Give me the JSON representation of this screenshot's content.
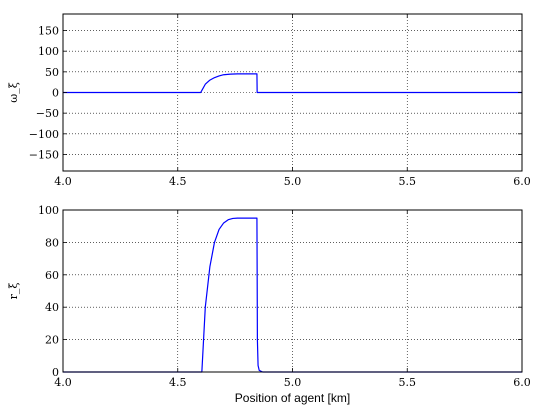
{
  "chart_data": [
    {
      "type": "line",
      "ylabel": "ω_ξ",
      "xlim": [
        4.0,
        6.0
      ],
      "ylim": [
        -190,
        190
      ],
      "x_ticks": [
        "4.0",
        "4.5",
        "5.0",
        "5.5",
        "6.0"
      ],
      "y_ticks": [
        "−150",
        "−100",
        "−50",
        "0",
        "50",
        "100",
        "150"
      ],
      "x_tick_values": [
        4.0,
        4.5,
        5.0,
        5.5,
        6.0
      ],
      "y_tick_values": [
        -150,
        -100,
        -50,
        0,
        50,
        100,
        150
      ],
      "grid": true,
      "series": [
        {
          "color": "#0000ff",
          "x": [
            4.0,
            4.6,
            4.605,
            4.62,
            4.64,
            4.66,
            4.68,
            4.7,
            4.73,
            4.76,
            4.8,
            4.845,
            4.846,
            4.86,
            6.0
          ],
          "y": [
            0,
            0,
            5,
            20,
            30,
            36,
            40,
            43,
            44.5,
            45,
            45,
            45,
            0,
            0,
            0
          ]
        }
      ]
    },
    {
      "type": "line",
      "ylabel": "r_ξ",
      "xlabel": "Position of agent [km]",
      "xlim": [
        4.0,
        6.0
      ],
      "ylim": [
        0,
        100
      ],
      "x_ticks": [
        "4.0",
        "4.5",
        "5.0",
        "5.5",
        "6.0"
      ],
      "y_ticks": [
        "0",
        "20",
        "40",
        "60",
        "80",
        "100"
      ],
      "x_tick_values": [
        4.0,
        4.5,
        5.0,
        5.5,
        6.0
      ],
      "y_tick_values": [
        0,
        20,
        40,
        60,
        80,
        100
      ],
      "grid": true,
      "series": [
        {
          "color": "#0000ff",
          "x": [
            4.0,
            4.605,
            4.62,
            4.64,
            4.66,
            4.68,
            4.7,
            4.72,
            4.74,
            4.76,
            4.8,
            4.845,
            4.846,
            4.847,
            4.85,
            4.855,
            4.87,
            6.0
          ],
          "y": [
            0,
            0,
            40,
            65,
            80,
            88,
            92,
            94,
            94.8,
            95,
            95,
            95,
            60,
            20,
            4,
            1,
            0,
            0
          ]
        }
      ]
    }
  ]
}
